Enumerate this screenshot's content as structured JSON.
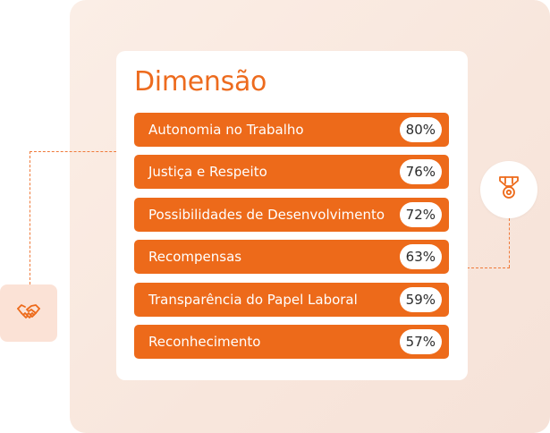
{
  "card": {
    "title": "Dimensão"
  },
  "dimensions": [
    {
      "label": "Autonomia no Trabalho",
      "value": "80%"
    },
    {
      "label": "Justiça e Respeito",
      "value": "76%"
    },
    {
      "label": "Possibilidades de Desenvolvimento",
      "value": "72%"
    },
    {
      "label": "Recompensas",
      "value": "63%"
    },
    {
      "label": "Transparência do Papel Laboral",
      "value": "59%"
    },
    {
      "label": "Reconhecimento",
      "value": "57%"
    }
  ],
  "icons": {
    "left": "handshake-icon",
    "right": "medal-icon"
  },
  "colors": {
    "accent": "#ed6a1a",
    "panel_bg": "#f8e6dc",
    "icon_box_bg": "#fbe2d6"
  }
}
